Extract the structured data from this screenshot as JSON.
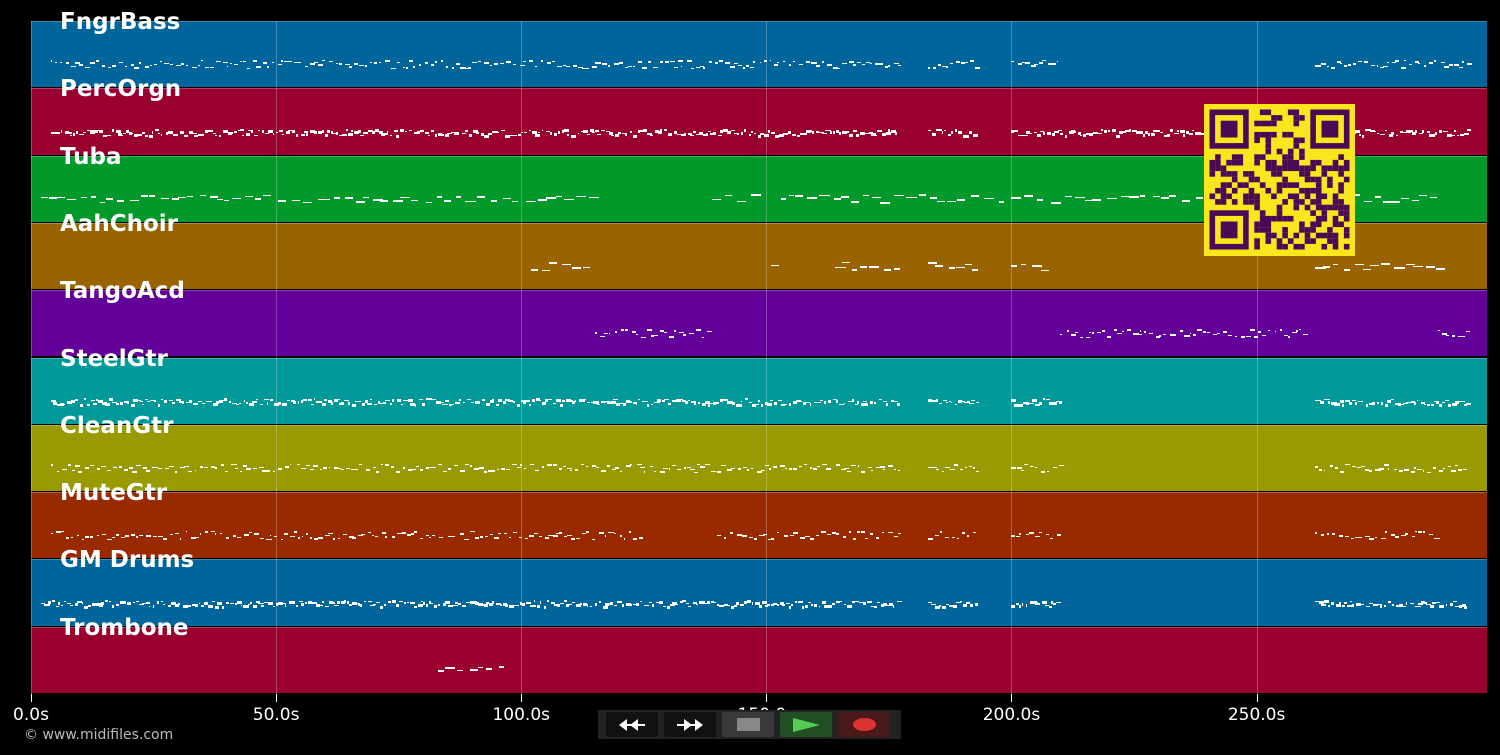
{
  "tracks": [
    {
      "name": "FngrBass",
      "color": "#00659a",
      "note_regions_s": [
        [
          4,
          177
        ],
        [
          183,
          193
        ],
        [
          200,
          210
        ],
        [
          262,
          293
        ]
      ],
      "style": "line"
    },
    {
      "name": "PercOrgn",
      "color": "#990030",
      "note_regions_s": [
        [
          4,
          177
        ],
        [
          183,
          193
        ],
        [
          200,
          210
        ],
        [
          210,
          240
        ],
        [
          262,
          293
        ]
      ],
      "style": "dense"
    },
    {
      "name": "Tuba",
      "color": "#00992a",
      "note_regions_s": [
        [
          2,
          115
        ],
        [
          139,
          148
        ],
        [
          153,
          245
        ],
        [
          262,
          287
        ]
      ],
      "style": "sparse"
    },
    {
      "name": "AahChoir",
      "color": "#996300",
      "note_regions_s": [
        [
          102,
          115
        ],
        [
          151,
          152
        ],
        [
          164,
          177
        ],
        [
          183,
          193
        ],
        [
          200,
          208
        ],
        [
          262,
          287
        ]
      ],
      "style": "sparse"
    },
    {
      "name": "TangoAcd",
      "color": "#630099",
      "note_regions_s": [
        [
          115,
          139
        ],
        [
          210,
          260
        ],
        [
          287,
          293
        ]
      ],
      "style": "line"
    },
    {
      "name": "SteelGtr",
      "color": "#009999",
      "note_regions_s": [
        [
          4,
          177
        ],
        [
          183,
          193
        ],
        [
          200,
          210
        ],
        [
          262,
          293
        ]
      ],
      "style": "dense"
    },
    {
      "name": "CleanGtr",
      "color": "#999900",
      "note_regions_s": [
        [
          4,
          177
        ],
        [
          183,
          193
        ],
        [
          200,
          210
        ],
        [
          262,
          293
        ]
      ],
      "style": "line"
    },
    {
      "name": "MuteGtr",
      "color": "#992a00",
      "note_regions_s": [
        [
          4,
          125
        ],
        [
          140,
          177
        ],
        [
          183,
          193
        ],
        [
          200,
          210
        ],
        [
          262,
          287
        ]
      ],
      "style": "line"
    },
    {
      "name": "GM Drums",
      "color": "#00659a",
      "note_regions_s": [
        [
          2,
          177
        ],
        [
          183,
          193
        ],
        [
          200,
          210
        ],
        [
          262,
          293
        ]
      ],
      "style": "dense"
    },
    {
      "name": "Trombone",
      "color": "#990030",
      "note_regions_s": [
        [
          83,
          96
        ]
      ],
      "style": "sparse"
    }
  ],
  "time_axis": {
    "max_s": 297,
    "ticks": [
      {
        "t": 0,
        "label": "0.0s"
      },
      {
        "t": 50,
        "label": "50.0s"
      },
      {
        "t": 100,
        "label": "100.0s"
      },
      {
        "t": 150,
        "label": "150.0s"
      },
      {
        "t": 200,
        "label": "200.0s"
      },
      {
        "t": 250,
        "label": "250.0s"
      }
    ]
  },
  "controls": {
    "rewind": "rewind-icon",
    "fast_forward": "fast-forward-icon",
    "stop": "stop-icon",
    "play": "play-icon",
    "record": "record-icon"
  },
  "copyright": "© www.midifiles.com"
}
